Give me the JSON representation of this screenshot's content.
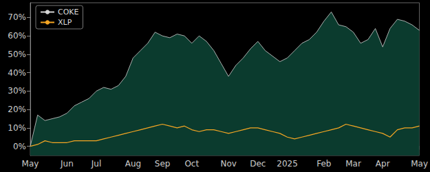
{
  "chart_data": {
    "type": "line",
    "categories": [
      "May",
      null,
      null,
      null,
      null,
      "Jun",
      null,
      null,
      null,
      "Jul",
      null,
      null,
      null,
      null,
      "Aug",
      null,
      null,
      null,
      "Sep",
      null,
      null,
      null,
      "Oct",
      null,
      null,
      null,
      null,
      "Nov",
      null,
      null,
      null,
      "Dec",
      null,
      null,
      null,
      "2025",
      null,
      null,
      null,
      null,
      "Feb",
      null,
      null,
      null,
      "Mar",
      null,
      null,
      null,
      "Apr",
      null,
      null,
      null,
      null,
      "May"
    ],
    "series": [
      {
        "name": "COKE",
        "type": "area",
        "color": "#d4d4d4",
        "values": [
          0,
          17,
          14,
          15,
          16,
          18,
          22,
          24,
          26,
          30,
          32,
          31,
          33,
          38,
          48,
          52,
          56,
          62,
          60,
          59,
          61,
          60,
          56,
          60,
          57,
          52,
          45,
          38,
          44,
          48,
          53,
          57,
          52,
          49,
          46,
          48,
          52,
          56,
          58,
          62,
          68,
          73,
          66,
          65,
          62,
          56,
          58,
          64,
          54,
          64,
          69,
          68,
          66,
          63
        ]
      },
      {
        "name": "XLP",
        "type": "line",
        "color": "#f5a623",
        "values": [
          0,
          1,
          3,
          2,
          2,
          2,
          3,
          3,
          3,
          3,
          4,
          5,
          6,
          7,
          8,
          9,
          10,
          11,
          12,
          11,
          10,
          11,
          9,
          8,
          9,
          9,
          8,
          7,
          8,
          9,
          10,
          10,
          9,
          8,
          7,
          5,
          4,
          5,
          6,
          7,
          8,
          9,
          10,
          12,
          11,
          10,
          9,
          8,
          7,
          5,
          9,
          10,
          10,
          11
        ]
      }
    ],
    "ylim": [
      -5,
      78
    ],
    "yticks": [
      {
        "value": 0,
        "label": "0%"
      },
      {
        "value": 10,
        "label": "10%"
      },
      {
        "value": 20,
        "label": "20%"
      },
      {
        "value": 30,
        "label": "30%"
      },
      {
        "value": 40,
        "label": "40%"
      },
      {
        "value": 50,
        "label": "50%"
      },
      {
        "value": 60,
        "label": "60%"
      },
      {
        "value": 70,
        "label": "70%"
      }
    ],
    "grid": false,
    "legend": "upper left"
  }
}
